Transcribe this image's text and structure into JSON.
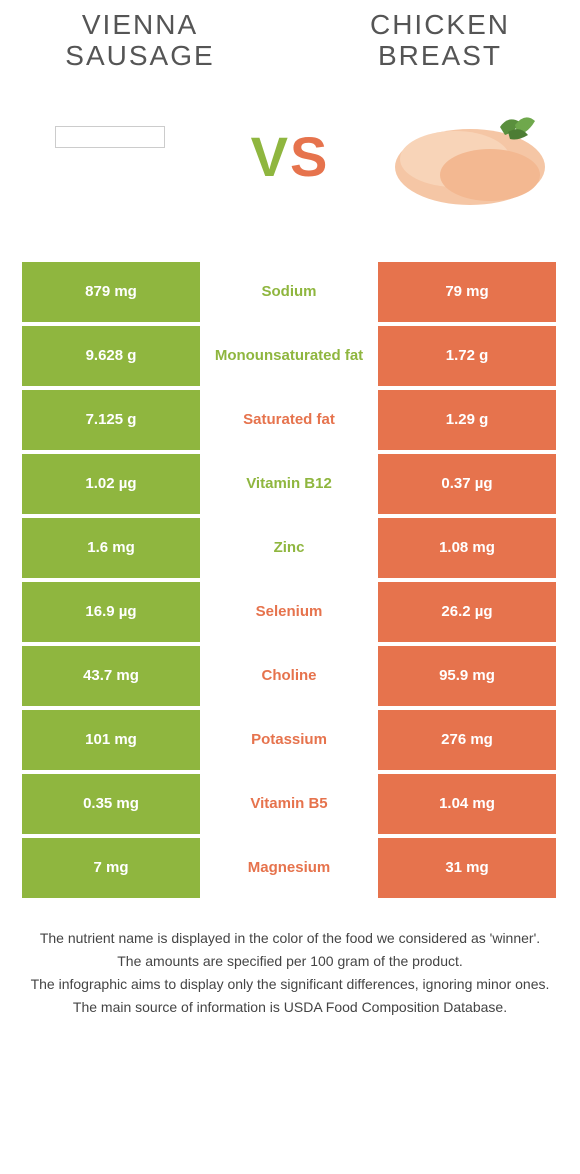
{
  "header": {
    "left_title": "VIENNA SAUSAGE",
    "right_title": "CHICKEN BREAST",
    "vs_v": "V",
    "vs_s": "S"
  },
  "colors": {
    "left": "#8fb63f",
    "right": "#e6734d",
    "left_text": "#8fb63f",
    "right_text": "#e6734d",
    "background": "#ffffff"
  },
  "comparison": {
    "type": "table",
    "rows": [
      {
        "left": "879 mg",
        "label": "Sodium",
        "right": "79 mg",
        "winner": "left"
      },
      {
        "left": "9.628 g",
        "label": "Monounsaturated fat",
        "right": "1.72 g",
        "winner": "left"
      },
      {
        "left": "7.125 g",
        "label": "Saturated fat",
        "right": "1.29 g",
        "winner": "right"
      },
      {
        "left": "1.02 µg",
        "label": "Vitamin B12",
        "right": "0.37 µg",
        "winner": "left"
      },
      {
        "left": "1.6 mg",
        "label": "Zinc",
        "right": "1.08 mg",
        "winner": "left"
      },
      {
        "left": "16.9 µg",
        "label": "Selenium",
        "right": "26.2 µg",
        "winner": "right"
      },
      {
        "left": "43.7 mg",
        "label": "Choline",
        "right": "95.9 mg",
        "winner": "right"
      },
      {
        "left": "101 mg",
        "label": "Potassium",
        "right": "276 mg",
        "winner": "right"
      },
      {
        "left": "0.35 mg",
        "label": "Vitamin B5",
        "right": "1.04 mg",
        "winner": "right"
      },
      {
        "left": "7 mg",
        "label": "Magnesium",
        "right": "31 mg",
        "winner": "right"
      }
    ]
  },
  "footnotes": {
    "line1": "The nutrient name is displayed in the color of the food we considered as 'winner'.",
    "line2": "The amounts are specified per 100 gram of the product.",
    "line3": "The infographic aims to display only the significant differences, ignoring minor ones.",
    "line4": "The main source of information is USDA Food Composition Database."
  }
}
